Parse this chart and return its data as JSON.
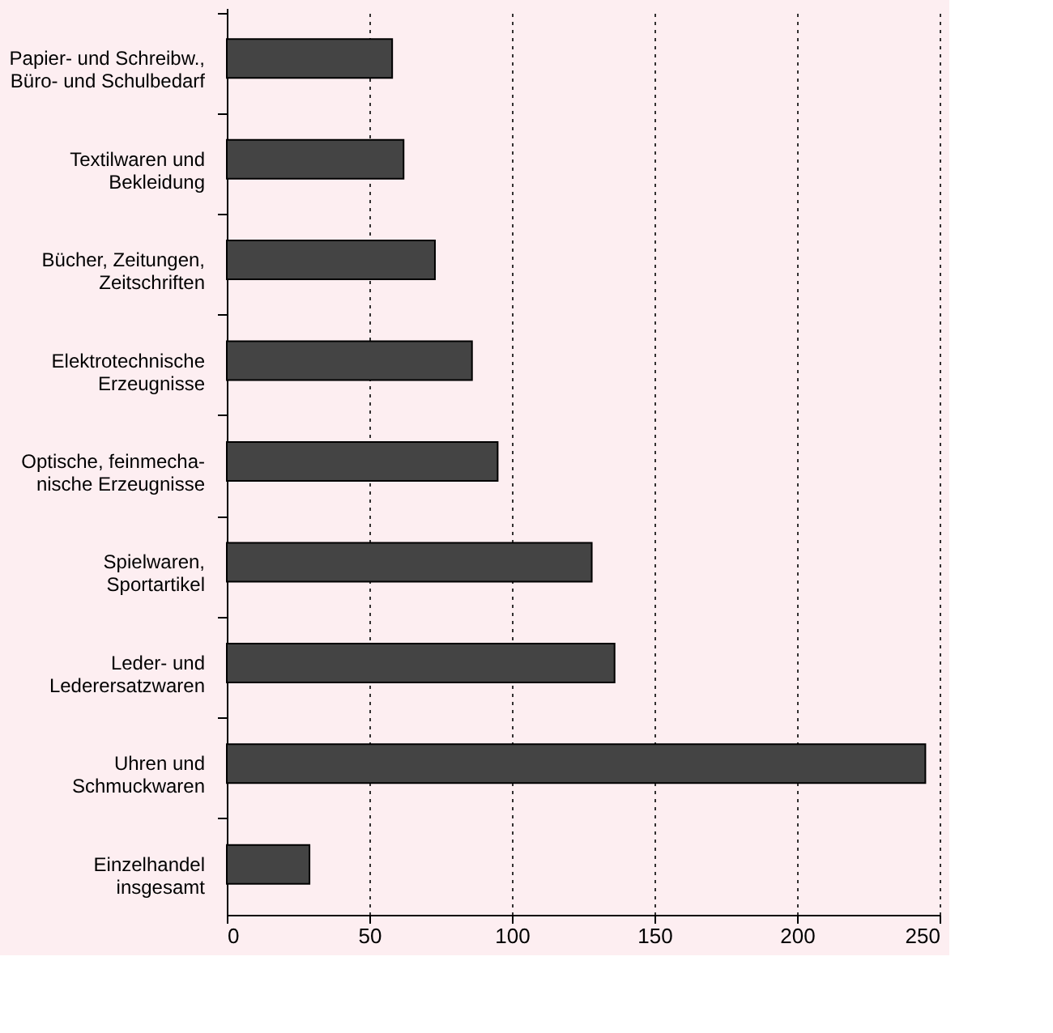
{
  "chart_data": {
    "type": "bar",
    "orientation": "horizontal",
    "categories": [
      "Papier- und Schreibw.,\nBüro- und Schulbedarf",
      "Textilwaren und\nBekleidung",
      "Bücher, Zeitungen,\nZeitschriften",
      "Elektrotechnische\nErzeugnisse",
      "Optische, feinmecha-\nnische Erzeugnisse",
      "Spielwaren,\nSportartikel",
      "Leder- und\nLederersatzwaren",
      "Uhren und\nSchmuckwaren",
      "Einzelhandel\ninsgesamt"
    ],
    "values": [
      58,
      62,
      73,
      86,
      95,
      128,
      136,
      245,
      29
    ],
    "color": "#444444",
    "xlim": [
      0,
      250
    ],
    "xticks": [
      0,
      50,
      100,
      150,
      200,
      250
    ],
    "grid": "x",
    "line_style": "dotted"
  }
}
